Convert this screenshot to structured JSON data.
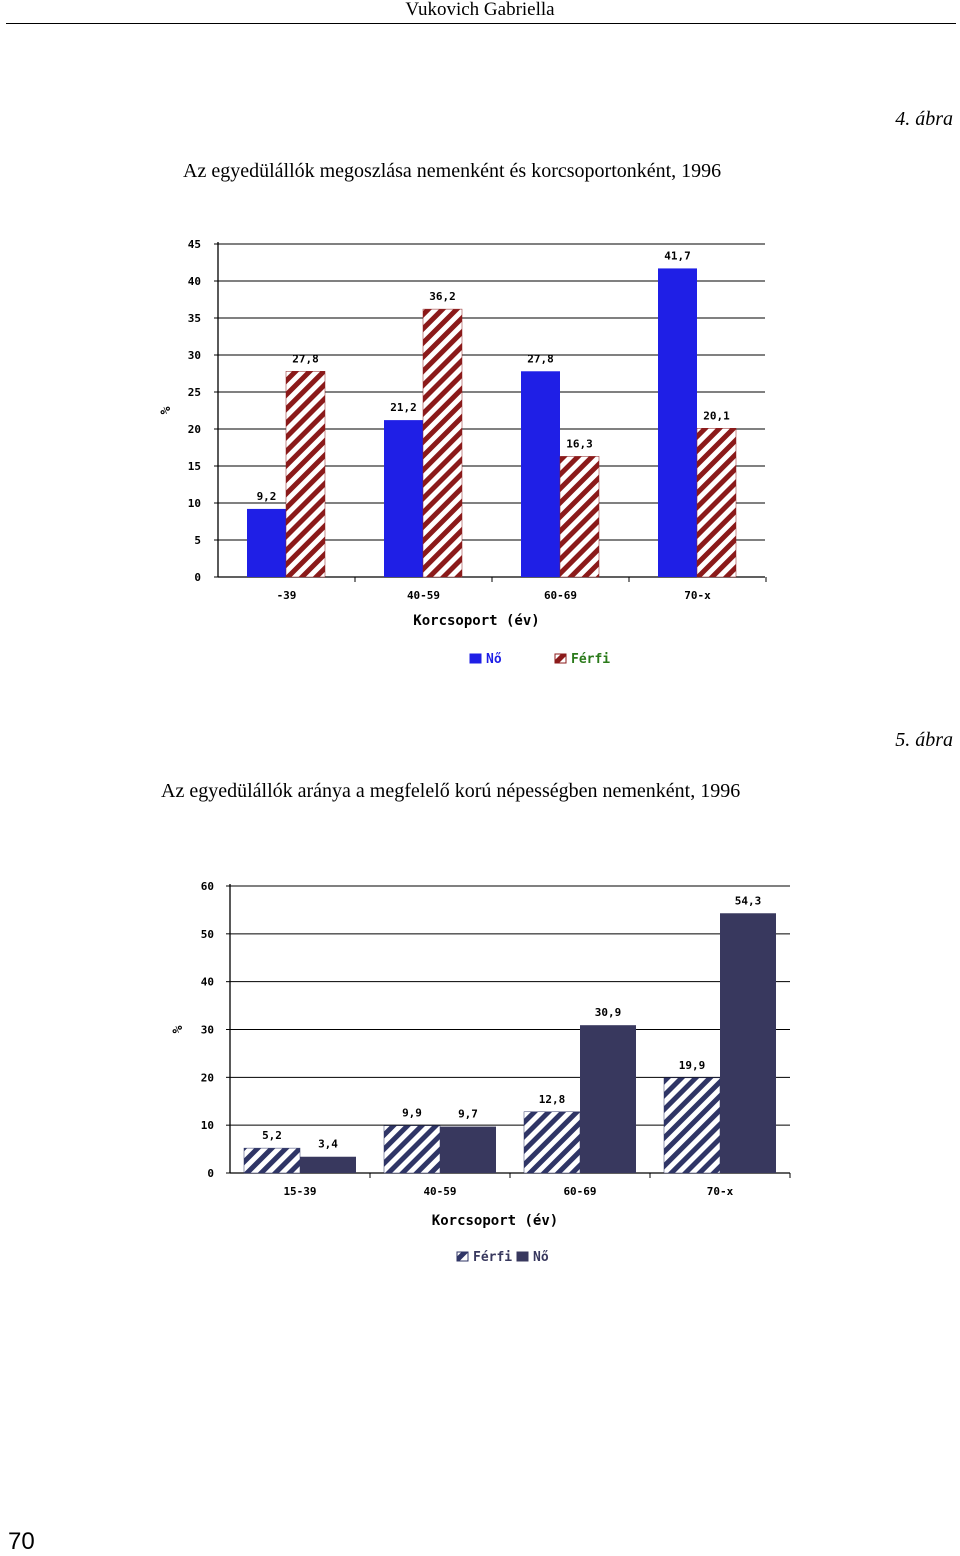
{
  "header": {
    "author": "Vukovich Gabriella"
  },
  "page_number": "70",
  "figures": [
    {
      "label": "4. ábra",
      "title": "Az egyedülállók megoszlása nemenként és korcsoportonként, 1996"
    },
    {
      "label": "5. ábra",
      "title": "Az egyedülállók aránya a megfelelő korú népességben nemenként, 1996"
    }
  ],
  "chart_data": [
    {
      "type": "bar",
      "categories": [
        "-39",
        "40-59",
        "60-69",
        "70-x"
      ],
      "series": [
        {
          "name": "Nő",
          "values": [
            9.2,
            21.2,
            27.8,
            41.7
          ],
          "color": "#1f1fe6"
        },
        {
          "name": "Férfi",
          "values": [
            27.8,
            36.2,
            16.3,
            20.1
          ],
          "color": "#8b1a1a",
          "pattern": "hatch"
        }
      ],
      "value_labels": [
        [
          "9,2",
          "21,2",
          "27,8",
          "41,7"
        ],
        [
          "27,8",
          "36,2",
          "16,3",
          "20,1"
        ]
      ],
      "yticks": [
        "0",
        "5",
        "10",
        "15",
        "20",
        "25",
        "30",
        "35",
        "40",
        "45"
      ],
      "ylim": [
        0,
        45
      ],
      "xlabel": "Korcsoport (év)",
      "ylabel": "%",
      "legend": "bottom",
      "grid": true
    },
    {
      "type": "bar",
      "categories": [
        "15-39",
        "40-59",
        "60-69",
        "70-x"
      ],
      "series": [
        {
          "name": "Férfi",
          "values": [
            5.2,
            9.9,
            12.8,
            19.9
          ],
          "color": "#2f3566",
          "pattern": "hatch"
        },
        {
          "name": "Nő",
          "values": [
            3.4,
            9.7,
            30.9,
            54.3
          ],
          "color": "#38385e"
        }
      ],
      "value_labels": [
        [
          "5,2",
          "9,9",
          "12,8",
          "19,9"
        ],
        [
          "3,4",
          "9,7",
          "30,9",
          "54,3"
        ]
      ],
      "yticks": [
        "0",
        "10",
        "20",
        "30",
        "40",
        "50",
        "60"
      ],
      "ylim": [
        0,
        60
      ],
      "xlabel": "Korcsoport (év)",
      "ylabel": "%",
      "legend": "bottom",
      "grid": true
    }
  ]
}
